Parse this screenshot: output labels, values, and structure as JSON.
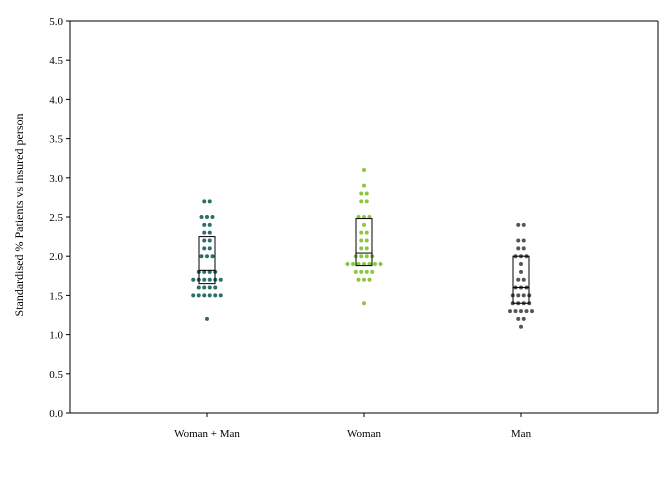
{
  "chart_data": {
    "type": "scatter",
    "subtype": "dot-plot-with-boxes",
    "title": "",
    "xlabel": "",
    "ylabel": "Standardised % Patients vs insured person",
    "ylim": [
      0,
      5
    ],
    "y_ticks": [
      "0.0",
      "0.5",
      "1.0",
      "1.5",
      "2.0",
      "2.5",
      "3.0",
      "3.5",
      "4.0",
      "4.5",
      "5.0"
    ],
    "grid": false,
    "legend": "none",
    "categories": [
      "Woman + Man",
      "Woman",
      "Man"
    ],
    "series": [
      {
        "category": "Woman + Man",
        "color": "#2a6f6a",
        "box": {
          "q1": 1.65,
          "median": 1.82,
          "q3": 2.25
        },
        "points": [
          1.2,
          1.5,
          1.5,
          1.5,
          1.5,
          1.5,
          1.5,
          1.6,
          1.6,
          1.6,
          1.6,
          1.7,
          1.7,
          1.7,
          1.7,
          1.7,
          1.7,
          1.8,
          1.8,
          1.8,
          1.8,
          2.0,
          2.0,
          2.0,
          2.1,
          2.1,
          2.2,
          2.2,
          2.3,
          2.3,
          2.4,
          2.4,
          2.5,
          2.5,
          2.5,
          2.7,
          2.7
        ]
      },
      {
        "category": "Woman",
        "color": "#8cc63f",
        "box": {
          "q1": 1.88,
          "median": 2.04,
          "q3": 2.48
        },
        "points": [
          1.4,
          1.7,
          1.7,
          1.7,
          1.8,
          1.8,
          1.8,
          1.8,
          1.9,
          1.9,
          1.9,
          1.9,
          1.9,
          1.9,
          1.9,
          2.0,
          2.0,
          2.0,
          2.0,
          2.1,
          2.1,
          2.2,
          2.2,
          2.3,
          2.3,
          2.4,
          2.5,
          2.5,
          2.5,
          2.7,
          2.7,
          2.8,
          2.8,
          2.9,
          3.1
        ]
      },
      {
        "category": "Man",
        "color": "#555555",
        "box": {
          "q1": 1.4,
          "median": 1.6,
          "q3": 2.0
        },
        "points": [
          1.1,
          1.2,
          1.2,
          1.3,
          1.3,
          1.3,
          1.3,
          1.3,
          1.4,
          1.4,
          1.4,
          1.4,
          1.5,
          1.5,
          1.5,
          1.5,
          1.6,
          1.6,
          1.6,
          1.7,
          1.7,
          1.8,
          1.9,
          2.0,
          2.0,
          2.0,
          2.1,
          2.1,
          2.2,
          2.2,
          2.4,
          2.4
        ]
      }
    ]
  }
}
